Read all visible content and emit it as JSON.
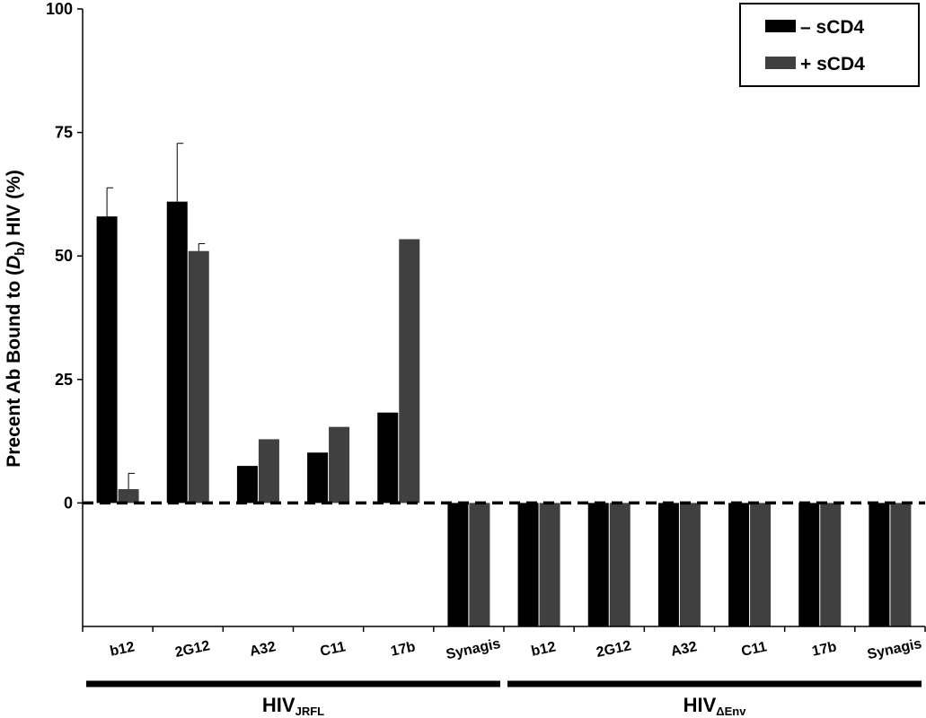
{
  "chart_data": {
    "type": "bar",
    "ylabel": {
      "prefix": "Precent Ab Bound to (",
      "italic": "D",
      "sub": "b",
      "suffix": ") HIV (%)"
    },
    "ylim": [
      -25,
      100
    ],
    "yticks": [
      "100",
      "75",
      "50",
      "25",
      "0"
    ],
    "reference_line": {
      "y": 0,
      "style": "dashed"
    },
    "categories": [
      "b12",
      "2G12",
      "A32",
      "C11",
      "17b",
      "Synagis",
      "b12",
      "2G12",
      "A32",
      "C11",
      "17b",
      "Synagis"
    ],
    "groups": [
      {
        "label": "HIV",
        "sub": "JRFL",
        "span": [
          0,
          5
        ]
      },
      {
        "label": "HIV",
        "sub": "ΔEnv",
        "span": [
          6,
          11
        ]
      }
    ],
    "series": [
      {
        "name": "– sCD4",
        "color": "#000000",
        "values": [
          58,
          61,
          7.5,
          10.2,
          18.3,
          -25,
          -25,
          -25,
          -25,
          -25,
          -25,
          -25
        ],
        "error": [
          5.8,
          11.8,
          0,
          0,
          0,
          0,
          0,
          0,
          0,
          0,
          0,
          0
        ]
      },
      {
        "name": "+ sCD4",
        "color": "#404040",
        "values": [
          2.8,
          51,
          12.9,
          15.4,
          53.4,
          -25,
          -25,
          -25,
          -25,
          -25,
          -25,
          -25
        ],
        "error": [
          3.2,
          1.5,
          0,
          0,
          0,
          0,
          0,
          0,
          0,
          0,
          0,
          0
        ]
      }
    ],
    "legend": {
      "position": "top-right"
    },
    "grid": false
  }
}
